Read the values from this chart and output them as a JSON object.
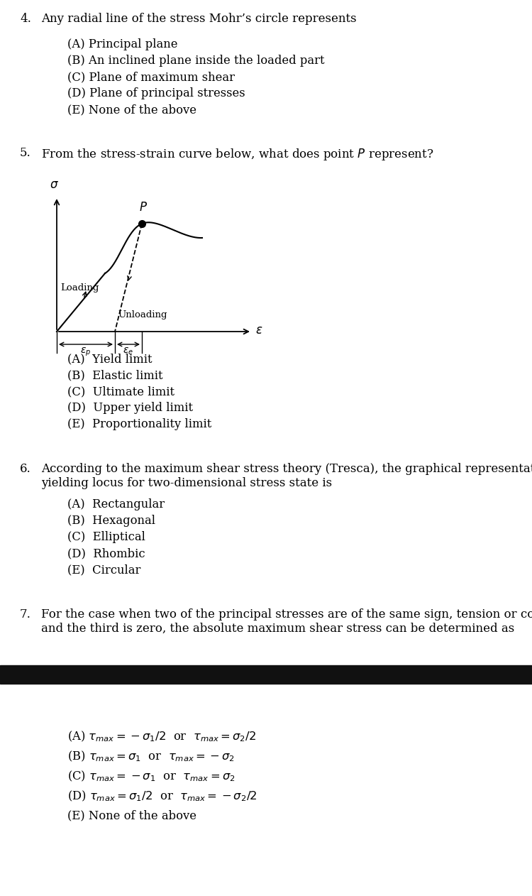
{
  "background_color": "#ffffff",
  "q4": {
    "number": "4.",
    "question": "Any radial line of the stress Mohr’s circle represents",
    "options": [
      "(A) Principal plane",
      "(B) An inclined plane inside the loaded part",
      "(C) Plane of maximum shear",
      "(D) Plane of principal stresses",
      "(E) None of the above"
    ]
  },
  "q5": {
    "number": "5.",
    "question": "From the stress-strain curve below, what does point $P$ represent?",
    "options": [
      "(A)  Yield limit",
      "(B)  Elastic limit",
      "(C)  Ultimate limit",
      "(D)  Upper yield limit",
      "(E)  Proportionality limit"
    ]
  },
  "q6": {
    "number": "6.",
    "question_line1": "According to the maximum shear stress theory (Tresca), the graphical representation of",
    "question_line2": "yielding locus for two-dimensional stress state is",
    "options": [
      "(A)  Rectangular",
      "(B)  Hexagonal",
      "(C)  Elliptical",
      "(D)  Rhombic",
      "(E)  Circular"
    ]
  },
  "q7": {
    "number": "7.",
    "question_line1": "For the case when two of the principal stresses are of the same sign, tension or compression,",
    "question_line2": "and the third is zero, the absolute maximum shear stress can be determined as",
    "options_math": [
      "(A) $\\tau_{max} = -\\sigma_1/2$  or  $\\tau_{max} = \\sigma_2/2$",
      "(B) $\\tau_{max} = \\sigma_1$  or  $\\tau_{max} = -\\sigma_2$",
      "(C) $\\tau_{max} = -\\sigma_1$  or  $\\tau_{max} = \\sigma_2$",
      "(D) $\\tau_{max} = \\sigma_1/2$  or  $\\tau_{max} = -\\sigma_2/2$",
      "(E) None of the above"
    ]
  }
}
